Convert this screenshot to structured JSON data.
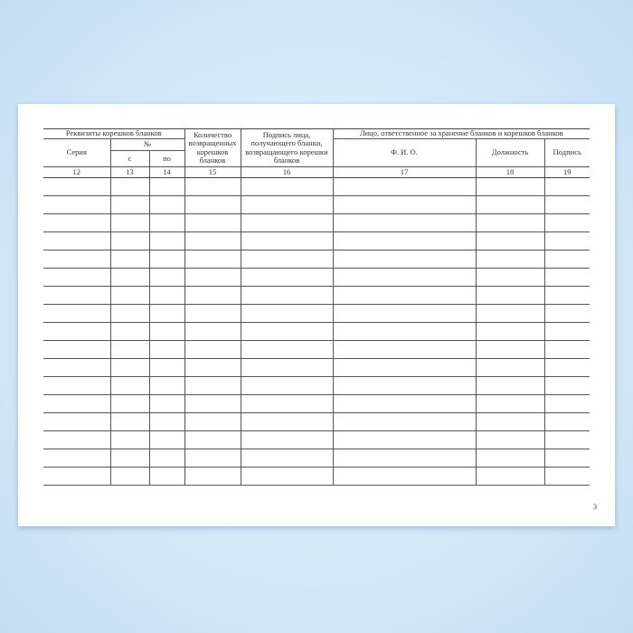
{
  "table": {
    "group_requisites": "Реквизиты корешков бланков",
    "col_series": "Серия",
    "col_number": "№",
    "col_from": "с",
    "col_to": "по",
    "col_count": "Количество возвращенных корешков бланков",
    "col_signature_receiver": "Подпись лица, получающего бланки, возвращающего корешки бланков",
    "group_responsible": "Лицо, ответственное за хранение бланков и корешков бланков",
    "col_name": "Ф. И. О.",
    "col_position": "Должность",
    "col_signature": "Подпись",
    "column_numbers": [
      "12",
      "13",
      "14",
      "15",
      "16",
      "17",
      "18",
      "19"
    ]
  },
  "page_number": "3"
}
